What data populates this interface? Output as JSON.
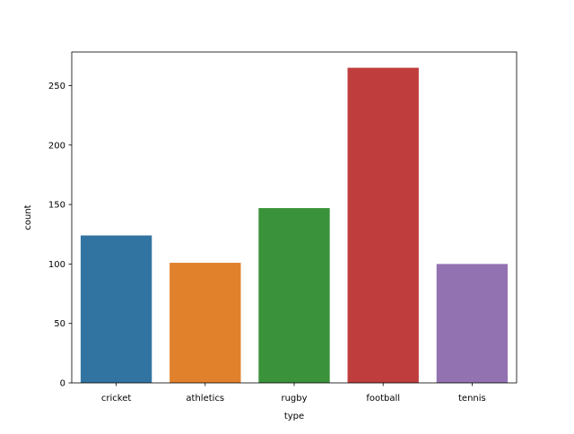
{
  "chart_data": {
    "type": "bar",
    "categories": [
      "cricket",
      "athletics",
      "rugby",
      "football",
      "tennis"
    ],
    "values": [
      124,
      101,
      147,
      265,
      100
    ],
    "colors": [
      "#3274a1",
      "#e1812c",
      "#3a923a",
      "#c03d3e",
      "#9372b2"
    ],
    "xlabel": "type",
    "ylabel": "count",
    "ylim": [
      0,
      278.25
    ],
    "yticks": [
      0,
      50,
      100,
      150,
      200,
      250
    ],
    "grid": false,
    "legend": false
  }
}
